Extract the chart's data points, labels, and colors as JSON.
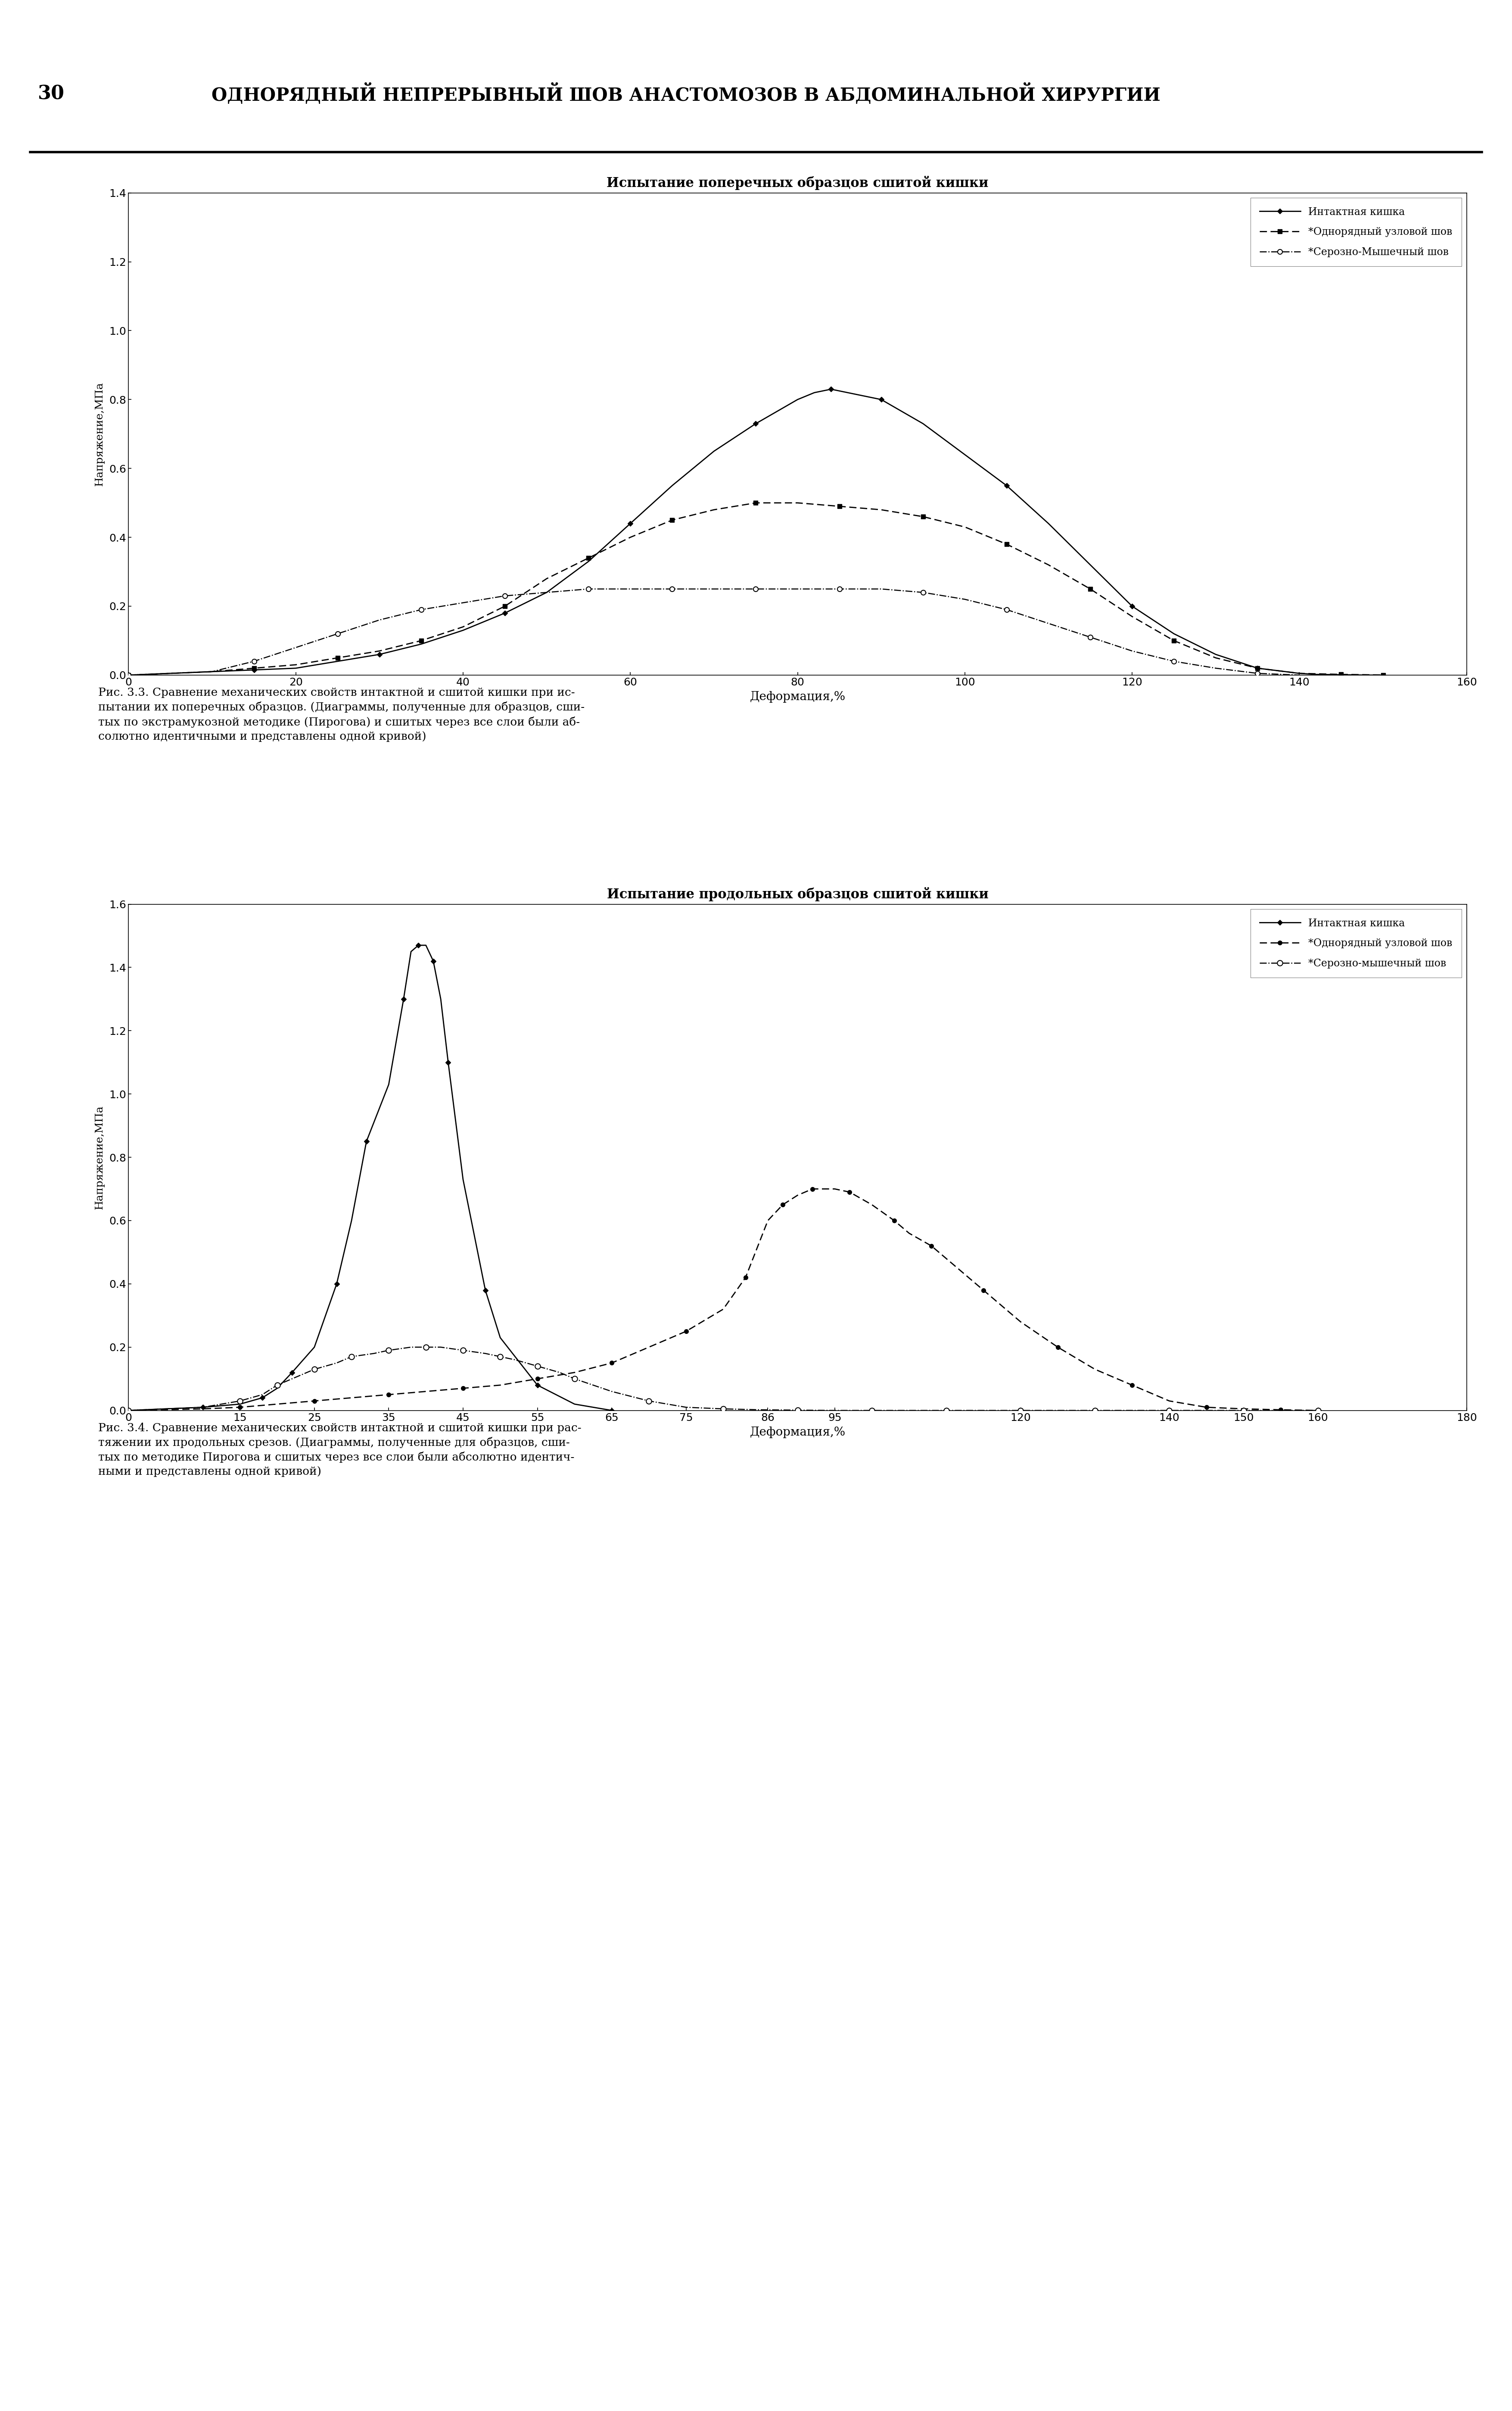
{
  "chart1": {
    "title": "Испытание поперечных образцов сшитой кишки",
    "xlabel": "Деформация,%",
    "ylabel": "Напряжение,МПа",
    "xlim": [
      0,
      160
    ],
    "ylim": [
      0,
      1.4
    ],
    "xticks": [
      0,
      20,
      40,
      60,
      80,
      100,
      120,
      140,
      160
    ],
    "yticks": [
      0,
      0.2,
      0.4,
      0.6,
      0.8,
      1.0,
      1.2,
      1.4
    ],
    "series1_label": "Интактная кишка",
    "series2_label": "*Однорядный узловой шов",
    "series3_label": "*Серозно-Мышечный шов",
    "series1_x": [
      0,
      5,
      10,
      15,
      20,
      25,
      30,
      35,
      40,
      45,
      50,
      55,
      60,
      65,
      70,
      75,
      80,
      82,
      84,
      86,
      88,
      90,
      95,
      100,
      105,
      110,
      115,
      120,
      125,
      130,
      135,
      140,
      142,
      145,
      148,
      150
    ],
    "series1_y": [
      0,
      0.005,
      0.01,
      0.015,
      0.02,
      0.04,
      0.06,
      0.09,
      0.13,
      0.18,
      0.24,
      0.33,
      0.44,
      0.55,
      0.65,
      0.73,
      0.8,
      0.82,
      0.83,
      0.82,
      0.81,
      0.8,
      0.73,
      0.64,
      0.55,
      0.44,
      0.32,
      0.2,
      0.12,
      0.06,
      0.02,
      0.005,
      0.002,
      0.001,
      0.0,
      0.0
    ],
    "series2_x": [
      0,
      10,
      15,
      20,
      25,
      30,
      35,
      40,
      45,
      50,
      55,
      60,
      65,
      70,
      75,
      80,
      85,
      90,
      95,
      100,
      105,
      110,
      115,
      120,
      125,
      130,
      135,
      140,
      145,
      148,
      150
    ],
    "series2_y": [
      0,
      0.01,
      0.02,
      0.03,
      0.05,
      0.07,
      0.1,
      0.14,
      0.2,
      0.28,
      0.34,
      0.4,
      0.45,
      0.48,
      0.5,
      0.5,
      0.49,
      0.48,
      0.46,
      0.43,
      0.38,
      0.32,
      0.25,
      0.17,
      0.1,
      0.05,
      0.02,
      0.005,
      0.002,
      0.001,
      0.0
    ],
    "series3_x": [
      0,
      10,
      15,
      20,
      25,
      30,
      35,
      40,
      45,
      50,
      55,
      60,
      65,
      70,
      75,
      80,
      85,
      90,
      95,
      100,
      105,
      110,
      115,
      120,
      125,
      130,
      135,
      140
    ],
    "series3_y": [
      0,
      0.01,
      0.04,
      0.08,
      0.12,
      0.16,
      0.19,
      0.21,
      0.23,
      0.24,
      0.25,
      0.25,
      0.25,
      0.25,
      0.25,
      0.25,
      0.25,
      0.25,
      0.24,
      0.22,
      0.19,
      0.15,
      0.11,
      0.07,
      0.04,
      0.02,
      0.005,
      0.0
    ]
  },
  "chart2": {
    "title": "Испытание продольных образцов сшитой кишки",
    "xlabel": "Деформация,%",
    "ylabel": "Напряжение,МПа",
    "xlim": [
      0,
      180
    ],
    "ylim": [
      0,
      1.6
    ],
    "xticks": [
      0,
      15,
      25,
      35,
      45,
      55,
      65,
      75,
      86,
      95,
      120,
      140,
      150,
      160,
      180
    ],
    "yticks": [
      0,
      0.2,
      0.4,
      0.6,
      0.8,
      1.0,
      1.2,
      1.4,
      1.6
    ],
    "series1_label": "Интактная кишка",
    "series2_label": "*Однорядный узловой шов",
    "series3_label": "*Серозно-мышечный шов",
    "series1_x": [
      0,
      5,
      10,
      15,
      18,
      20,
      22,
      25,
      28,
      30,
      32,
      35,
      37,
      38,
      39,
      40,
      41,
      42,
      43,
      45,
      48,
      50,
      55,
      60,
      65
    ],
    "series1_y": [
      0,
      0.005,
      0.01,
      0.02,
      0.04,
      0.07,
      0.12,
      0.2,
      0.4,
      0.6,
      0.85,
      1.03,
      1.3,
      1.45,
      1.47,
      1.47,
      1.42,
      1.3,
      1.1,
      0.73,
      0.38,
      0.23,
      0.08,
      0.02,
      0.0
    ],
    "series2_x": [
      0,
      10,
      15,
      20,
      25,
      30,
      35,
      40,
      45,
      50,
      55,
      60,
      65,
      70,
      75,
      80,
      83,
      86,
      88,
      90,
      92,
      95,
      97,
      100,
      103,
      105,
      108,
      110,
      115,
      120,
      125,
      130,
      135,
      140,
      145,
      150,
      155,
      160
    ],
    "series2_y": [
      0,
      0.005,
      0.01,
      0.02,
      0.03,
      0.04,
      0.05,
      0.06,
      0.07,
      0.08,
      0.1,
      0.12,
      0.15,
      0.2,
      0.25,
      0.32,
      0.42,
      0.6,
      0.65,
      0.68,
      0.7,
      0.7,
      0.69,
      0.65,
      0.6,
      0.56,
      0.52,
      0.48,
      0.38,
      0.28,
      0.2,
      0.13,
      0.08,
      0.03,
      0.01,
      0.005,
      0.002,
      0.0
    ],
    "series3_x": [
      0,
      10,
      15,
      18,
      20,
      22,
      25,
      28,
      30,
      33,
      35,
      38,
      40,
      42,
      45,
      48,
      50,
      52,
      55,
      58,
      60,
      65,
      70,
      75,
      80,
      85,
      90,
      95,
      100,
      105,
      110,
      115,
      120,
      125,
      130,
      135,
      140,
      145,
      150,
      155,
      160
    ],
    "series3_y": [
      0,
      0.01,
      0.03,
      0.05,
      0.08,
      0.1,
      0.13,
      0.15,
      0.17,
      0.18,
      0.19,
      0.2,
      0.2,
      0.2,
      0.19,
      0.18,
      0.17,
      0.16,
      0.14,
      0.12,
      0.1,
      0.06,
      0.03,
      0.01,
      0.005,
      0.002,
      0.001,
      0.0,
      0.0,
      0.0,
      0.0,
      0.0,
      0.0,
      0.0,
      0.0,
      0.0,
      0.0,
      0.0,
      0.0,
      0.0,
      0.0
    ]
  },
  "caption1": "Рис. 3.3. Сравнение механических свойств интактной и сшитой кишки при ис-\nпытании их поперечных образцов. (Диаграммы, полученные для образцов, сши-\nтых по экстрамукозной методике (Пирогова) и сшитых через все слои были аб-\nсолютно идентичными и представлены одной кривой)",
  "caption2": "Рис. 3.4. Сравнение механических свойств интактной и сшитой кишки при рас-\nтяжении их продольных срезов. (Диаграммы, полученные для образцов, сши-\nтых по методике Пирогова и сшитых через все слои были абсолютно идентич-\nными и представлены одной кривой)",
  "header_num": "30",
  "header_title": "ОДНОРЯДНЫЙ НЕПРЕРЫВНЫЙ ШОВ АНАСТОМОЗОВ В АБДОМИНАЛЬНОЙ ХИРУРГИИ",
  "line_color": "#000000",
  "background": "#ffffff"
}
